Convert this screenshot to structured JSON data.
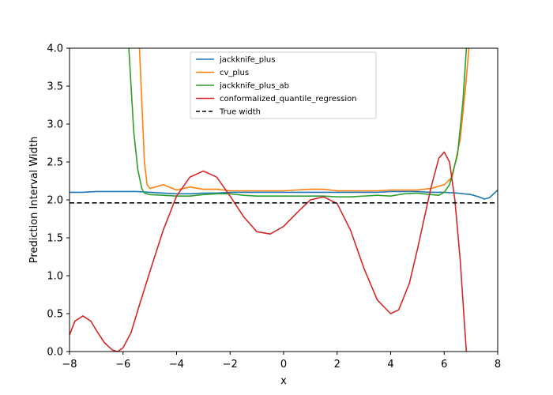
{
  "chart_data": {
    "type": "line",
    "title": "",
    "xlabel": "x",
    "ylabel": "Prediction Interval Width",
    "xlim": [
      -8,
      8
    ],
    "ylim": [
      0,
      4
    ],
    "xticks": [
      "−8",
      "−6",
      "−4",
      "−2",
      "0",
      "2",
      "4",
      "6",
      "8"
    ],
    "xtick_values": [
      -8,
      -6,
      -4,
      -2,
      0,
      2,
      4,
      6,
      8
    ],
    "yticks": [
      "0.0",
      "0.5",
      "1.0",
      "1.5",
      "2.0",
      "2.5",
      "3.0",
      "3.5",
      "4.0"
    ],
    "ytick_values": [
      0,
      0.5,
      1,
      1.5,
      2,
      2.5,
      3,
      3.5,
      4
    ],
    "grid": false,
    "legend_position": "top-center",
    "series": [
      {
        "name": "jackknife_plus",
        "color": "#1f77b4",
        "style": "solid",
        "points": [
          [
            -8,
            2.1
          ],
          [
            -7.5,
            2.1
          ],
          [
            -7,
            2.11
          ],
          [
            -6.5,
            2.11
          ],
          [
            -6,
            2.11
          ],
          [
            -5.5,
            2.11
          ],
          [
            -5,
            2.1
          ],
          [
            -4.5,
            2.09
          ],
          [
            -4,
            2.08
          ],
          [
            -3.5,
            2.08
          ],
          [
            -3,
            2.09
          ],
          [
            -2.5,
            2.09
          ],
          [
            -2,
            2.1
          ],
          [
            -1.5,
            2.1
          ],
          [
            -1,
            2.1
          ],
          [
            -0.5,
            2.1
          ],
          [
            0,
            2.1
          ],
          [
            0.5,
            2.1
          ],
          [
            1,
            2.1
          ],
          [
            1.5,
            2.1
          ],
          [
            2,
            2.1
          ],
          [
            2.5,
            2.1
          ],
          [
            3,
            2.1
          ],
          [
            3.5,
            2.1
          ],
          [
            4,
            2.11
          ],
          [
            4.5,
            2.11
          ],
          [
            5,
            2.11
          ],
          [
            5.5,
            2.1
          ],
          [
            6,
            2.1
          ],
          [
            6.5,
            2.09
          ],
          [
            7,
            2.07
          ],
          [
            7.3,
            2.04
          ],
          [
            7.5,
            2.01
          ],
          [
            7.7,
            2.03
          ],
          [
            8,
            2.13
          ]
        ]
      },
      {
        "name": "cv_plus",
        "color": "#ff7f0e",
        "style": "solid",
        "points": [
          [
            -5.4,
            4.1
          ],
          [
            -5.3,
            3.3
          ],
          [
            -5.2,
            2.5
          ],
          [
            -5.1,
            2.2
          ],
          [
            -5,
            2.15
          ],
          [
            -4.5,
            2.2
          ],
          [
            -4,
            2.13
          ],
          [
            -3.5,
            2.17
          ],
          [
            -3,
            2.14
          ],
          [
            -2.5,
            2.14
          ],
          [
            -2,
            2.12
          ],
          [
            -1.5,
            2.12
          ],
          [
            -1,
            2.12
          ],
          [
            -0.5,
            2.12
          ],
          [
            0,
            2.12
          ],
          [
            0.5,
            2.13
          ],
          [
            1,
            2.14
          ],
          [
            1.5,
            2.14
          ],
          [
            2,
            2.12
          ],
          [
            2.5,
            2.12
          ],
          [
            3,
            2.12
          ],
          [
            3.5,
            2.12
          ],
          [
            4,
            2.13
          ],
          [
            4.5,
            2.13
          ],
          [
            5,
            2.13
          ],
          [
            5.5,
            2.15
          ],
          [
            6,
            2.2
          ],
          [
            6.3,
            2.3
          ],
          [
            6.6,
            2.8
          ],
          [
            6.8,
            3.5
          ],
          [
            6.95,
            4.1
          ]
        ]
      },
      {
        "name": "jackknife_plus_ab",
        "color": "#2ca02c",
        "style": "solid",
        "points": [
          [
            -5.8,
            4.1
          ],
          [
            -5.6,
            2.9
          ],
          [
            -5.45,
            2.4
          ],
          [
            -5.3,
            2.15
          ],
          [
            -5.2,
            2.09
          ],
          [
            -5,
            2.07
          ],
          [
            -4.5,
            2.06
          ],
          [
            -4,
            2.05
          ],
          [
            -3.5,
            2.05
          ],
          [
            -3,
            2.07
          ],
          [
            -2.5,
            2.08
          ],
          [
            -2,
            2.08
          ],
          [
            -1.5,
            2.06
          ],
          [
            -1,
            2.05
          ],
          [
            -0.5,
            2.05
          ],
          [
            0,
            2.05
          ],
          [
            0.5,
            2.05
          ],
          [
            1,
            2.05
          ],
          [
            1.5,
            2.05
          ],
          [
            2,
            2.04
          ],
          [
            2.5,
            2.04
          ],
          [
            3,
            2.05
          ],
          [
            3.5,
            2.06
          ],
          [
            4,
            2.05
          ],
          [
            4.5,
            2.08
          ],
          [
            5,
            2.09
          ],
          [
            5.5,
            2.07
          ],
          [
            5.8,
            2.06
          ],
          [
            6,
            2.1
          ],
          [
            6.2,
            2.2
          ],
          [
            6.5,
            2.6
          ],
          [
            6.7,
            3.3
          ],
          [
            6.85,
            4.1
          ]
        ]
      },
      {
        "name": "conformalized_quantile_regression",
        "color": "#d62728",
        "style": "solid",
        "points": [
          [
            -8,
            0.22
          ],
          [
            -7.8,
            0.4
          ],
          [
            -7.5,
            0.47
          ],
          [
            -7.2,
            0.4
          ],
          [
            -7,
            0.28
          ],
          [
            -6.7,
            0.12
          ],
          [
            -6.4,
            0.02
          ],
          [
            -6.2,
            0.0
          ],
          [
            -6,
            0.05
          ],
          [
            -5.7,
            0.25
          ],
          [
            -5.4,
            0.6
          ],
          [
            -5,
            1.05
          ],
          [
            -4.5,
            1.6
          ],
          [
            -4,
            2.05
          ],
          [
            -3.5,
            2.3
          ],
          [
            -3,
            2.38
          ],
          [
            -2.5,
            2.3
          ],
          [
            -2,
            2.05
          ],
          [
            -1.5,
            1.78
          ],
          [
            -1,
            1.58
          ],
          [
            -0.5,
            1.55
          ],
          [
            0,
            1.65
          ],
          [
            0.5,
            1.83
          ],
          [
            1,
            2.0
          ],
          [
            1.5,
            2.04
          ],
          [
            2,
            1.95
          ],
          [
            2.5,
            1.6
          ],
          [
            3,
            1.1
          ],
          [
            3.5,
            0.68
          ],
          [
            4,
            0.5
          ],
          [
            4.3,
            0.55
          ],
          [
            4.7,
            0.9
          ],
          [
            5,
            1.35
          ],
          [
            5.5,
            2.15
          ],
          [
            5.8,
            2.55
          ],
          [
            6,
            2.63
          ],
          [
            6.2,
            2.5
          ],
          [
            6.4,
            2.0
          ],
          [
            6.6,
            1.2
          ],
          [
            6.75,
            0.4
          ],
          [
            6.85,
            -0.1
          ]
        ]
      },
      {
        "name": "True width",
        "color": "#000000",
        "style": "dashed",
        "points": [
          [
            -8,
            1.96
          ],
          [
            8,
            1.96
          ]
        ]
      }
    ]
  }
}
